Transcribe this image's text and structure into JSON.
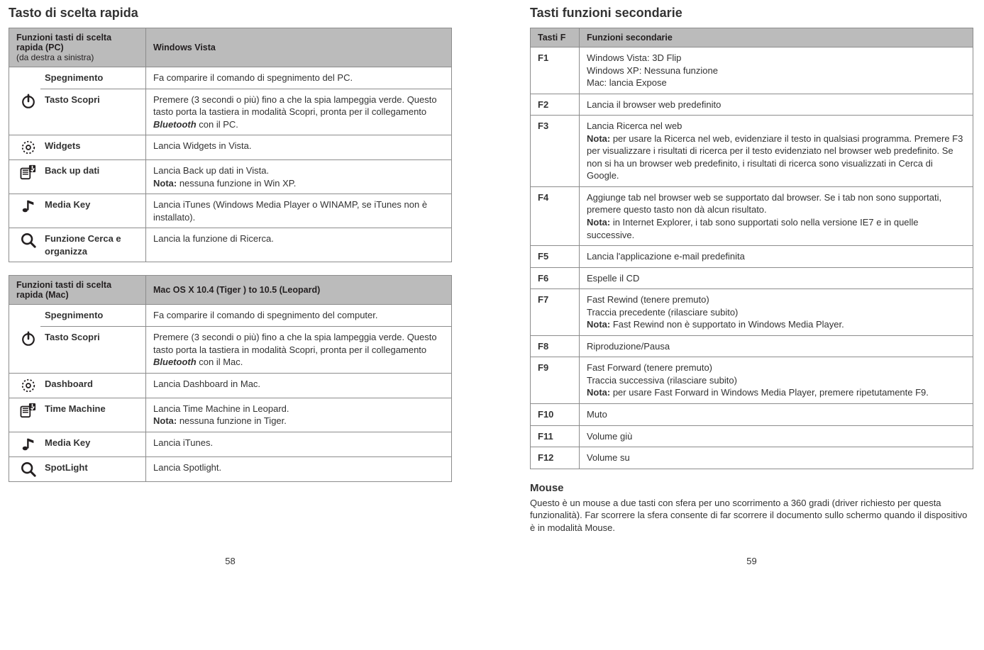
{
  "left": {
    "title": "Tasto di scelta rapida",
    "table1": {
      "head": {
        "c1": "Funzioni tasti di scelta rapida (PC)",
        "c1sub": "(da destra a sinistra)",
        "c2": "Windows Vista"
      },
      "rows": [
        {
          "icon": "power",
          "label": "Spegnimento",
          "desc": "Fa comparire il comando di spegnimento del PC."
        },
        {
          "icon": "power",
          "iconSpan": true,
          "label": "Tasto Scopri",
          "desc": "Premere (3 secondi o più) fino a che la spia lampeggia verde. Questo tasto porta la tastiera in modalità Scopri, pronta per il collegamento ",
          "descItalic": "Bluetooth",
          "descAfter": " con il PC."
        },
        {
          "icon": "widget",
          "label": "Widgets",
          "desc": "Lancia Widgets in Vista."
        },
        {
          "icon": "backup",
          "label": "Back up dati",
          "desc": "Lancia Back up dati in Vista.",
          "note": "Nota:",
          "noteText": " nessuna funzione in Win XP."
        },
        {
          "icon": "music",
          "label": "Media Key",
          "desc": "Lancia iTunes (Windows Media Player o WINAMP, se iTunes non è installato)."
        },
        {
          "icon": "search",
          "label": "Funzione Cerca e organizza",
          "desc": "Lancia la funzione di Ricerca."
        }
      ]
    },
    "table2": {
      "head": {
        "c1": "Funzioni tasti di scelta rapida (Mac)",
        "c2": "Mac OS X 10.4 (Tiger ) to 10.5 (Leopard)"
      },
      "rows": [
        {
          "icon": "power",
          "label": "Spegnimento",
          "desc": "Fa comparire il comando di spegnimento del computer."
        },
        {
          "icon": "power",
          "iconSpan": true,
          "label": "Tasto Scopri",
          "desc": "Premere (3 secondi o più) fino a che la spia lampeggia verde. Questo tasto porta la tastiera in modalità Scopri, pronta per il collegamento ",
          "descItalic": "Bluetooth",
          "descAfter": " con il Mac."
        },
        {
          "icon": "widget",
          "label": "Dashboard",
          "desc": "Lancia Dashboard in Mac."
        },
        {
          "icon": "backup",
          "label": "Time Machine",
          "desc": "Lancia Time Machine in Leopard.",
          "note": "Nota:",
          "noteText": " nessuna funzione in Tiger."
        },
        {
          "icon": "music",
          "label": "Media Key",
          "desc": "Lancia iTunes."
        },
        {
          "icon": "search",
          "label": "SpotLight",
          "desc": "Lancia Spotlight."
        }
      ]
    },
    "pagenum": "58"
  },
  "right": {
    "title": "Tasti funzioni secondarie",
    "ftable": {
      "head": {
        "c1": "Tasti F",
        "c2": "Funzioni secondarie"
      },
      "rows": [
        {
          "f": "F1",
          "lines": [
            "Windows Vista: 3D Flip",
            "Windows XP: Nessuna funzione",
            "Mac: lancia Expose"
          ]
        },
        {
          "f": "F2",
          "lines": [
            "Lancia il browser web predefinito"
          ]
        },
        {
          "f": "F3",
          "lines": [
            "Lancia Ricerca nel web"
          ],
          "note": "Nota:",
          "noteText": " per usare la Ricerca nel web, evidenziare il testo in qualsiasi programma. Premere F3 per visualizzare i risultati di ricerca per il testo evidenziato nel browser web predefinito. Se non si ha un browser web predefinito, i risultati di ricerca sono visualizzati in Cerca di Google."
        },
        {
          "f": "F4",
          "lines": [
            "Aggiunge tab nel browser web se supportato dal browser. Se i tab non sono supportati, premere questo tasto non dà alcun risultato."
          ],
          "note": "Nota:",
          "noteText": " in Internet Explorer, i tab sono supportati solo nella versione IE7 e in quelle successive."
        },
        {
          "f": "F5",
          "lines": [
            "Lancia l'applicazione e-mail predefinita"
          ]
        },
        {
          "f": "F6",
          "lines": [
            "Espelle il CD"
          ]
        },
        {
          "f": "F7",
          "lines": [
            "Fast Rewind (tenere premuto)",
            "Traccia precedente (rilasciare subito)"
          ],
          "note": "Nota:",
          "noteText": " Fast Rewind non è supportato in Windows Media Player."
        },
        {
          "f": "F8",
          "lines": [
            "Riproduzione/Pausa"
          ]
        },
        {
          "f": "F9",
          "lines": [
            "Fast Forward (tenere premuto)",
            "Traccia successiva (rilasciare subito)"
          ],
          "note": "Nota:",
          "noteText": " per usare Fast Forward in Windows Media Player, premere ripetutamente F9."
        },
        {
          "f": "F10",
          "lines": [
            "Muto"
          ]
        },
        {
          "f": "F11",
          "lines": [
            "Volume giù"
          ]
        },
        {
          "f": "F12",
          "lines": [
            "Volume su"
          ]
        }
      ]
    },
    "mouseTitle": "Mouse",
    "mouseText": "Questo è un mouse a due tasti con sfera per uno scorrimento a 360 gradi (driver richiesto per questa funzionalità). Far scorrere la sfera consente di far scorrere il documento sullo schermo quando il dispositivo è in modalità Mouse.",
    "pagenum": "59"
  }
}
